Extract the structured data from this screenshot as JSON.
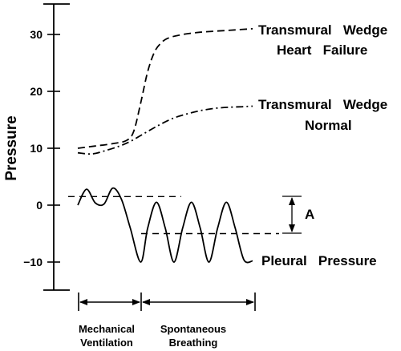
{
  "chart_data": {
    "type": "line",
    "ylabel": "Pressure",
    "ylim": [
      -15,
      35
    ],
    "y_ticks": [
      30,
      20,
      10,
      0,
      -10
    ],
    "y_tick_labels": [
      "30",
      "20",
      "10",
      "0",
      "−10"
    ],
    "x_phases": {
      "mechanical": {
        "label_line1": "Mechanical",
        "label_line2": "Ventilation"
      },
      "spontaneous": {
        "label_line1": "Spontaneous",
        "label_line2": "Breathing"
      }
    },
    "series": [
      {
        "name": "Transmural Wedge Heart Failure",
        "label_line1": "Transmural   Wedge",
        "label_line2": "Heart   Failure",
        "style": "dashed",
        "x": [
          0,
          0.1,
          0.2,
          0.28,
          0.32,
          0.36,
          0.4,
          0.44,
          0.48,
          0.52,
          0.6,
          0.7,
          0.8,
          0.9,
          1.0
        ],
        "y": [
          10.0,
          10.4,
          10.8,
          11.4,
          13.0,
          18.0,
          23.5,
          27.0,
          28.6,
          29.4,
          30.0,
          30.4,
          30.6,
          30.8,
          31.0
        ]
      },
      {
        "name": "Transmural Wedge Normal",
        "label_line1": "Transmural   Wedge",
        "label_line2": "Normal",
        "style": "dashdot",
        "x": [
          0,
          0.08,
          0.16,
          0.24,
          0.3,
          0.38,
          0.46,
          0.54,
          0.62,
          0.7,
          0.78,
          0.86,
          0.94,
          1.0
        ],
        "y": [
          9.2,
          9.0,
          9.6,
          10.4,
          11.2,
          12.6,
          14.0,
          15.2,
          16.0,
          16.6,
          17.0,
          17.2,
          17.3,
          17.4
        ]
      },
      {
        "name": "Pleural Pressure",
        "label_line1": "Pleural   Pressure",
        "style": "solid",
        "x": [
          0,
          0.05,
          0.1,
          0.15,
          0.2,
          0.25,
          0.3,
          0.36,
          0.4,
          0.45,
          0.5,
          0.55,
          0.6,
          0.65,
          0.7,
          0.75,
          0.8,
          0.85,
          0.9,
          0.95,
          1.0
        ],
        "y": [
          0.0,
          2.8,
          0.4,
          0.2,
          3.0,
          1.0,
          -4.0,
          -10.0,
          -4.0,
          0.5,
          -4.0,
          -10.0,
          -4.0,
          0.5,
          -4.0,
          -10.0,
          -4.0,
          0.5,
          -4.0,
          -9.6,
          -9.8
        ]
      }
    ],
    "reference_lines": [
      {
        "name": "end-expiratory pleural (mechanical)",
        "y": 1.5
      },
      {
        "name": "end-expiratory pleural (spontaneous)",
        "y": -5.0
      }
    ],
    "annotation": {
      "label": "A",
      "from_y": 1.5,
      "to_y": -5.0
    }
  }
}
